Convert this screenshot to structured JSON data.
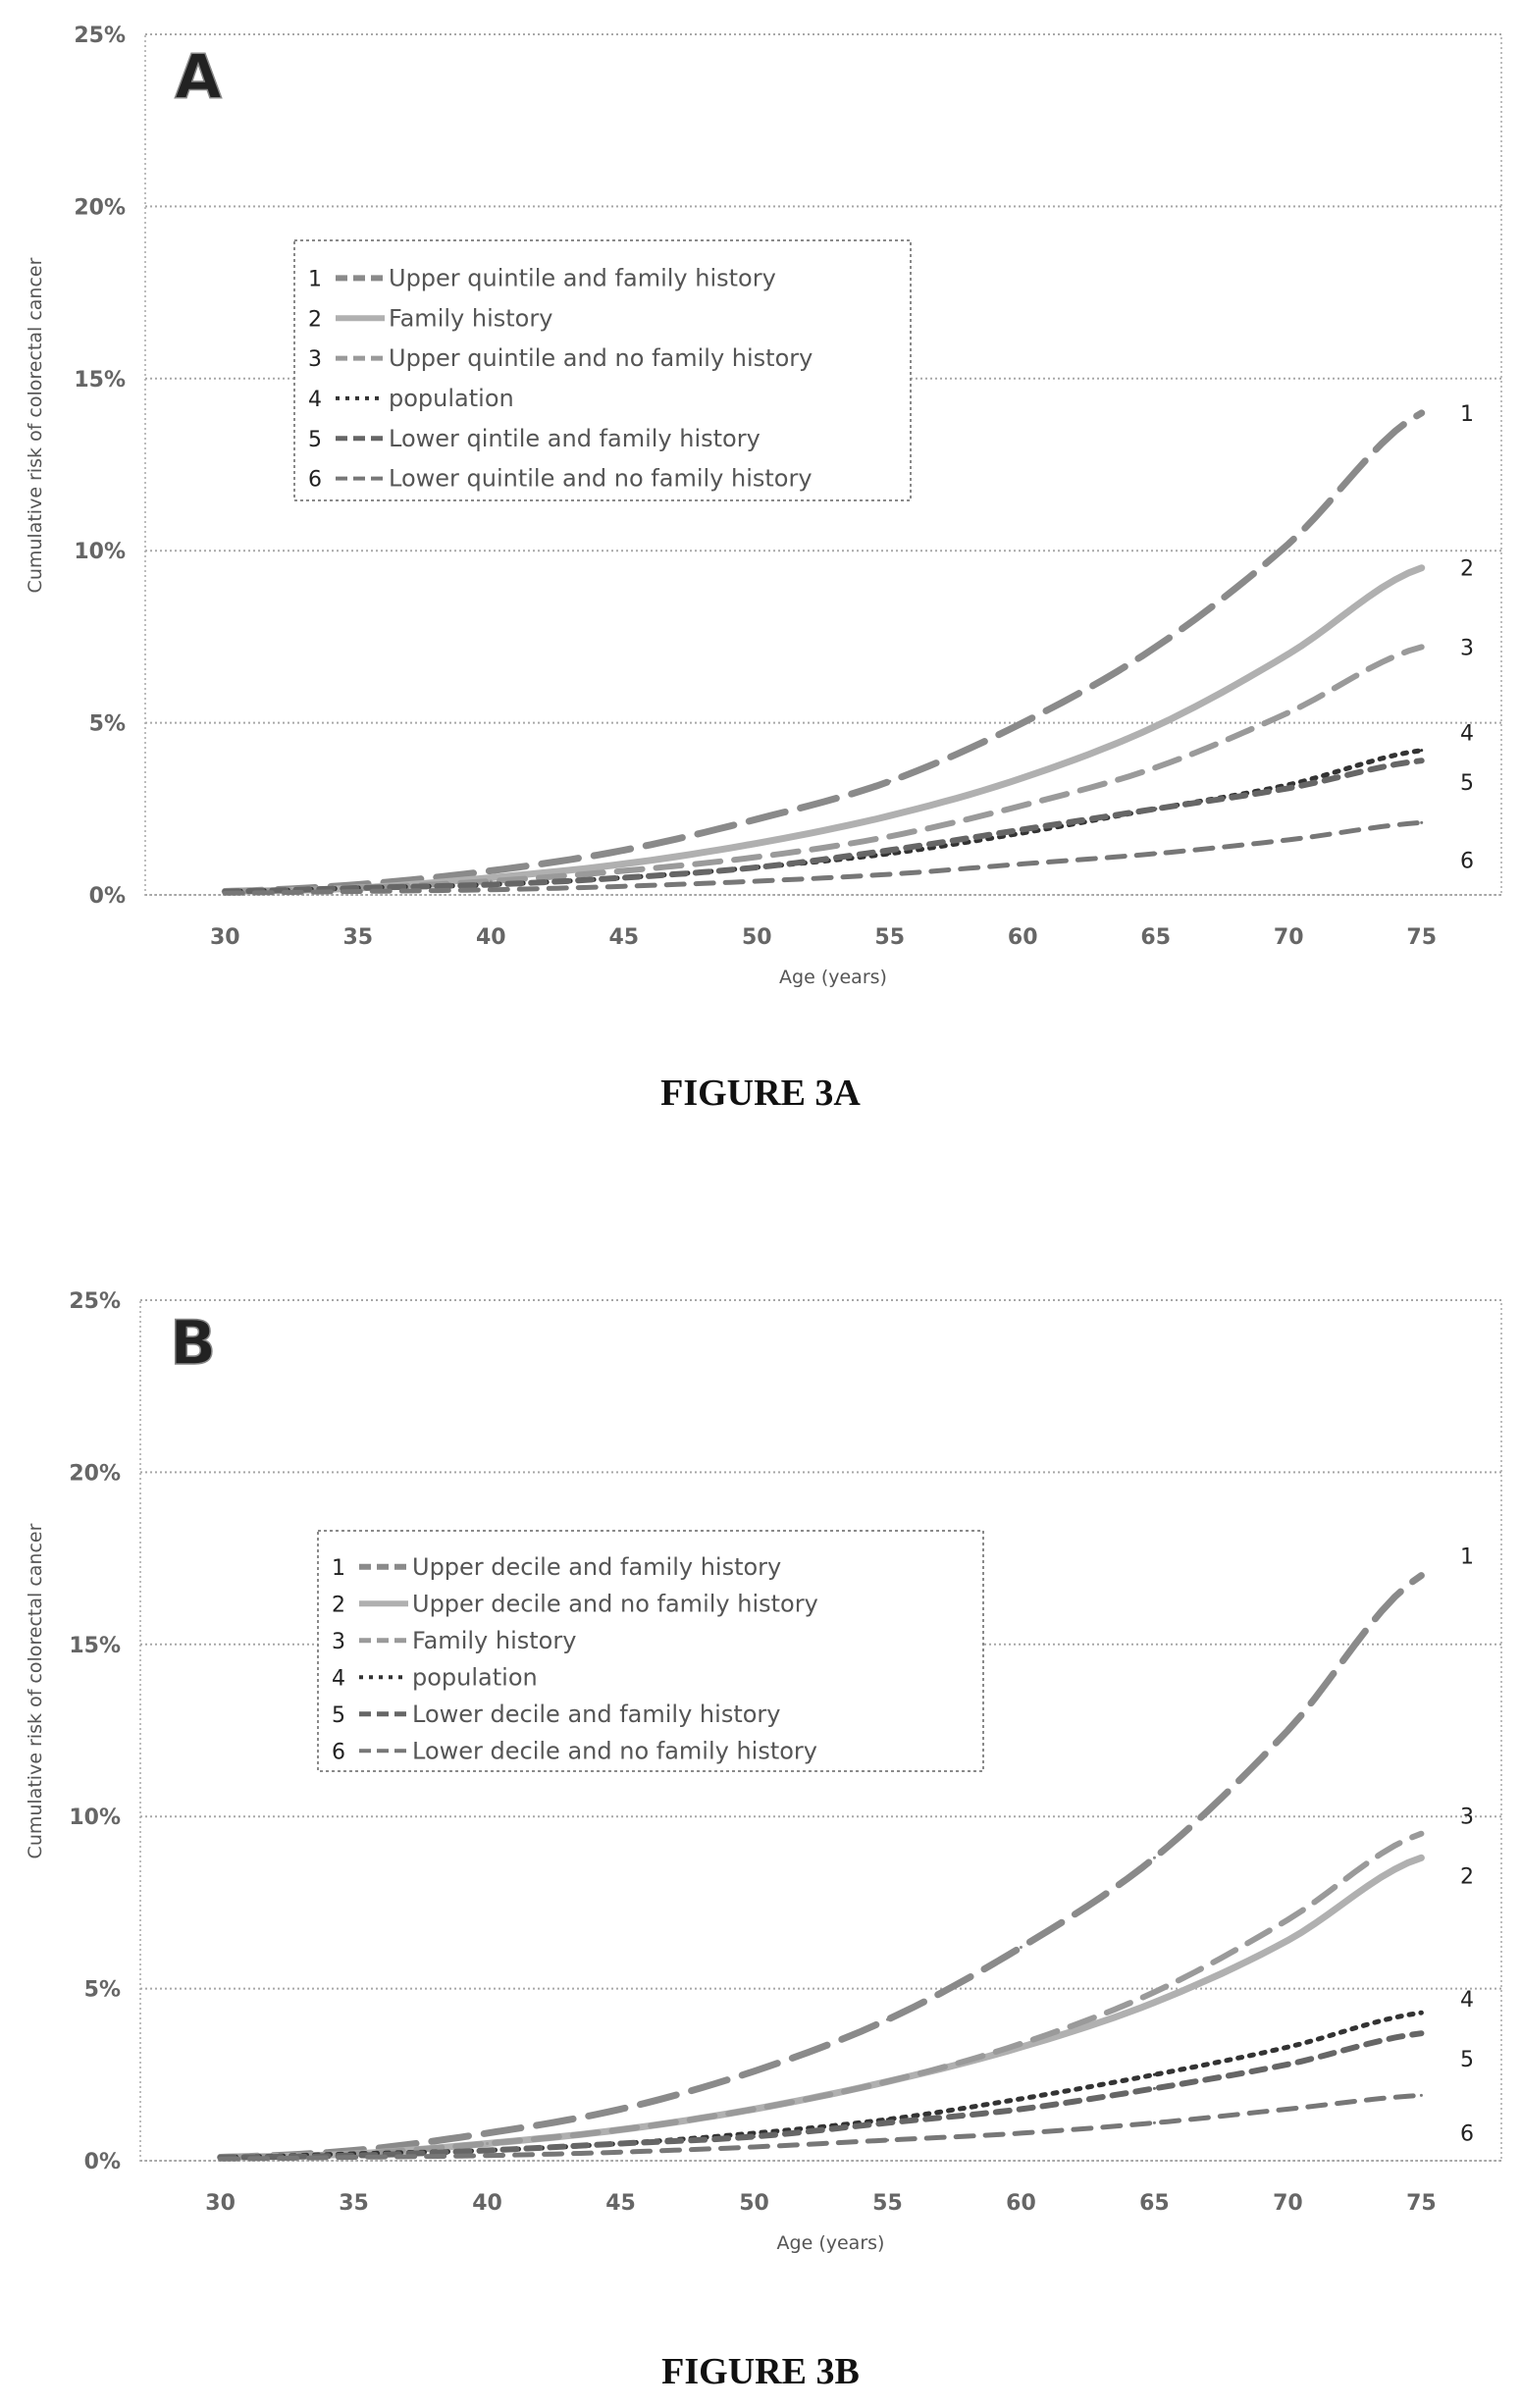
{
  "chart_data": [
    {
      "type": "line",
      "panel_letter": "A",
      "caption": "FIGURE 3A",
      "xlabel": "Age (years)",
      "ylabel": "Cumulative risk of colorectal cancer",
      "xlim": [
        27,
        78
      ],
      "ylim": [
        0,
        25
      ],
      "x_ticks": [
        "30",
        "35",
        "40",
        "45",
        "50",
        "55",
        "60",
        "65",
        "70",
        "75"
      ],
      "y_ticks": [
        "0%",
        "5%",
        "10%",
        "15%",
        "20%",
        "25%"
      ],
      "grid": true,
      "legend_position": "upper-left",
      "x": [
        30,
        35,
        40,
        45,
        50,
        55,
        60,
        65,
        70,
        75
      ],
      "series": [
        {
          "id": "1",
          "name": "Upper quintile and family history",
          "values": [
            0.1,
            0.3,
            0.7,
            1.3,
            2.2,
            3.3,
            5.0,
            7.2,
            10.2,
            14.0
          ]
        },
        {
          "id": "2",
          "name": "Family history",
          "values": [
            0.1,
            0.2,
            0.5,
            0.9,
            1.5,
            2.3,
            3.4,
            4.9,
            7.0,
            9.5
          ]
        },
        {
          "id": "3",
          "name": "Upper quintile and no family history",
          "values": [
            0.1,
            0.2,
            0.4,
            0.7,
            1.1,
            1.7,
            2.6,
            3.7,
            5.3,
            7.2
          ]
        },
        {
          "id": "4",
          "name": "population",
          "values": [
            0.1,
            0.2,
            0.3,
            0.5,
            0.8,
            1.2,
            1.8,
            2.5,
            3.2,
            4.2
          ]
        },
        {
          "id": "5",
          "name": "Lower qintile and family history",
          "values": [
            0.1,
            0.2,
            0.3,
            0.5,
            0.8,
            1.3,
            1.9,
            2.5,
            3.1,
            3.9
          ]
        },
        {
          "id": "6",
          "name": "Lower quintile and no family history",
          "values": [
            0.05,
            0.1,
            0.15,
            0.25,
            0.4,
            0.6,
            0.9,
            1.2,
            1.6,
            2.1
          ]
        }
      ]
    },
    {
      "type": "line",
      "panel_letter": "B",
      "caption": "FIGURE 3B",
      "xlabel": "Age (years)",
      "ylabel": "Cumulative risk of colorectal cancer",
      "xlim": [
        27,
        78
      ],
      "ylim": [
        0,
        25
      ],
      "x_ticks": [
        "30",
        "35",
        "40",
        "45",
        "50",
        "55",
        "60",
        "65",
        "70",
        "75"
      ],
      "y_ticks": [
        "0%",
        "5%",
        "10%",
        "15%",
        "20%",
        "25%"
      ],
      "grid": true,
      "legend_position": "upper-left",
      "x": [
        30,
        35,
        40,
        45,
        50,
        55,
        60,
        65,
        70,
        75
      ],
      "series": [
        {
          "id": "1",
          "name": "Upper decile and family history",
          "values": [
            0.1,
            0.3,
            0.8,
            1.5,
            2.6,
            4.1,
            6.2,
            8.8,
            12.5,
            17.0
          ]
        },
        {
          "id": "2",
          "name": "Upper decile and no family history",
          "values": [
            0.1,
            0.2,
            0.5,
            0.9,
            1.5,
            2.3,
            3.3,
            4.6,
            6.4,
            8.8
          ]
        },
        {
          "id": "3",
          "name": "Family history",
          "values": [
            0.1,
            0.2,
            0.5,
            0.9,
            1.5,
            2.3,
            3.4,
            4.9,
            7.0,
            9.5
          ]
        },
        {
          "id": "4",
          "name": "population",
          "values": [
            0.1,
            0.2,
            0.3,
            0.5,
            0.8,
            1.2,
            1.8,
            2.5,
            3.3,
            4.3
          ]
        },
        {
          "id": "5",
          "name": "Lower decile and family history",
          "values": [
            0.1,
            0.15,
            0.3,
            0.5,
            0.7,
            1.1,
            1.5,
            2.1,
            2.8,
            3.7
          ]
        },
        {
          "id": "6",
          "name": "Lower decile and no family history",
          "values": [
            0.05,
            0.1,
            0.15,
            0.25,
            0.4,
            0.6,
            0.8,
            1.1,
            1.5,
            1.9
          ]
        }
      ]
    }
  ]
}
